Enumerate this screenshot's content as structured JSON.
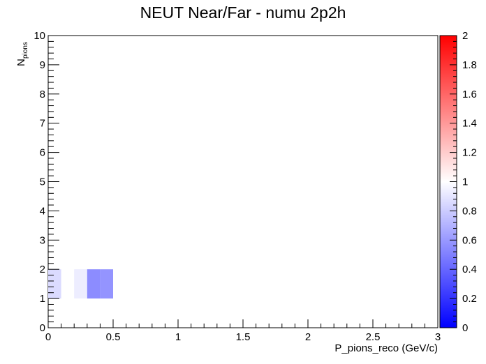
{
  "chart_data": {
    "type": "heatmap",
    "title": "NEUT Near/Far - numu 2p2h",
    "xlabel": "P_pions_reco (GeV/c)",
    "ylabel_main": "N",
    "ylabel_sub": "pions",
    "xlim": [
      0,
      3
    ],
    "ylim": [
      0,
      10
    ],
    "x_ticks": [
      0,
      0.5,
      1,
      1.5,
      2,
      2.5,
      3
    ],
    "x_tick_labels": [
      "0",
      "0.5",
      "1",
      "1.5",
      "2",
      "2.5",
      "3"
    ],
    "y_ticks": [
      0,
      1,
      2,
      3,
      4,
      5,
      6,
      7,
      8,
      9,
      10
    ],
    "y_tick_labels": [
      "0",
      "1",
      "2",
      "3",
      "4",
      "5",
      "6",
      "7",
      "8",
      "9",
      "10"
    ],
    "zlim": [
      0,
      2
    ],
    "z_ticks": [
      0,
      0.2,
      0.4,
      0.6,
      0.8,
      1,
      1.2,
      1.4,
      1.6,
      1.8,
      2
    ],
    "z_tick_labels": [
      "0",
      "0.2",
      "0.4",
      "0.6",
      "0.8",
      "1",
      "1.2",
      "1.4",
      "1.6",
      "1.8",
      "2"
    ],
    "cells": [
      {
        "x0": 0.0,
        "x1": 0.1,
        "y0": 1,
        "y1": 2,
        "z": 0.86
      },
      {
        "x0": 0.2,
        "x1": 0.3,
        "y0": 1,
        "y1": 2,
        "z": 0.93
      },
      {
        "x0": 0.3,
        "x1": 0.4,
        "y0": 1,
        "y1": 2,
        "z": 0.55
      },
      {
        "x0": 0.4,
        "x1": 0.5,
        "y0": 1,
        "y1": 2,
        "z": 0.58
      }
    ],
    "colorscale": [
      "#0000ff",
      "#ffffff",
      "#ff0000"
    ]
  }
}
